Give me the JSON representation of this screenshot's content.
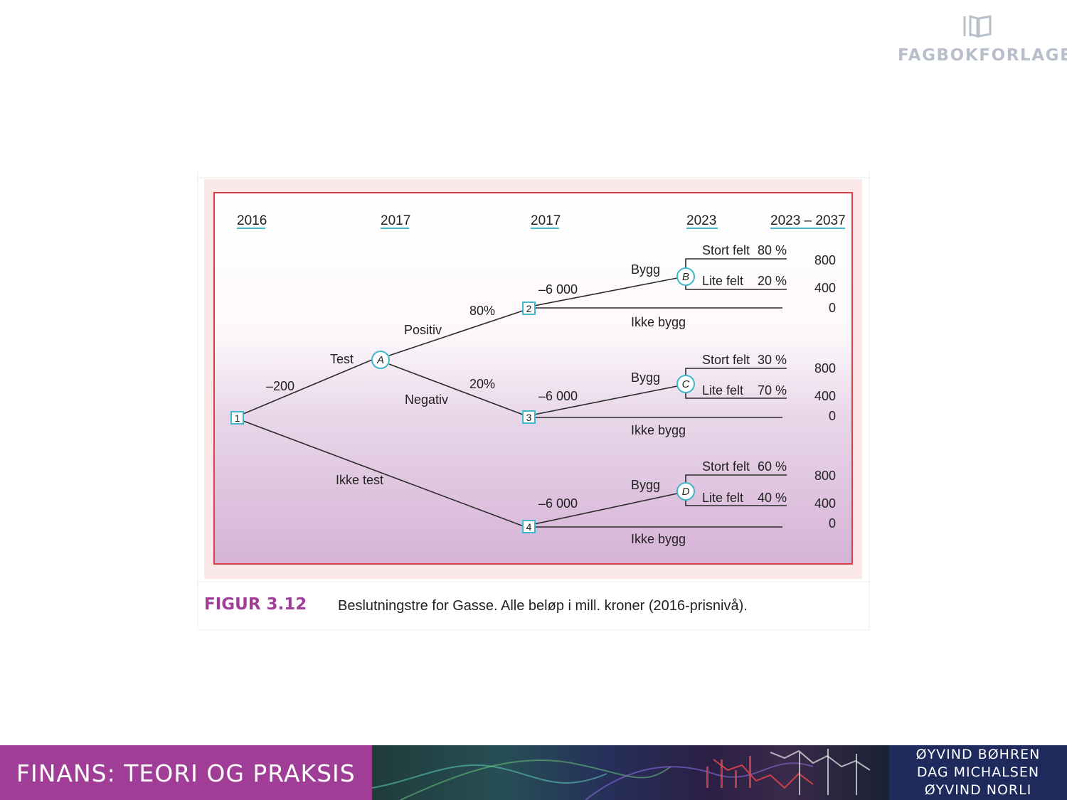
{
  "publisher": {
    "logo_icon": "book-icon",
    "name": "FAGBOKFORLAGET"
  },
  "figure": {
    "years": [
      "2016",
      "2017",
      "2017",
      "2023",
      "2023 – 2037"
    ],
    "decision_nodes": [
      "1",
      "2",
      "3",
      "4"
    ],
    "chance_nodes": [
      "A",
      "B",
      "C",
      "D"
    ],
    "branches": {
      "test_cost": "–200",
      "test": "Test",
      "no_test": "Ikke test",
      "positive": "Positiv",
      "positive_prob": "80%",
      "negative": "Negativ",
      "negative_prob": "20%"
    },
    "subtrees": [
      {
        "invest": "–6 000",
        "build": "Bygg",
        "no_build": "Ikke bygg",
        "large_field": "Stort felt",
        "large_prob": "80 %",
        "small_field": "Lite felt",
        "small_prob": "20 %",
        "payoffs": [
          "800",
          "400",
          "0"
        ]
      },
      {
        "invest": "–6 000",
        "build": "Bygg",
        "no_build": "Ikke bygg",
        "large_field": "Stort felt",
        "large_prob": "30 %",
        "small_field": "Lite felt",
        "small_prob": "70 %",
        "payoffs": [
          "800",
          "400",
          "0"
        ]
      },
      {
        "invest": "–6 000",
        "build": "Bygg",
        "no_build": "Ikke bygg",
        "large_field": "Stort felt",
        "large_prob": "60 %",
        "small_field": "Lite felt",
        "small_prob": "40 %",
        "payoffs": [
          "800",
          "400",
          "0"
        ]
      }
    ],
    "caption_label": "FIGUR 3.12",
    "caption_text": "Beslutningstre for Gasse. Alle beløp i mill. kroner (2016-prisnivå)."
  },
  "footer": {
    "title": "FINANS: TEORI OG PRAKSIS",
    "authors": [
      "ØYVIND BØHREN",
      "DAG MICHALSEN",
      "ØYVIND NORLI"
    ]
  },
  "colors": {
    "accent": "#a03e97",
    "frame": "#d9404a",
    "node_teal": "#3fb7c9",
    "footer_navy": "#1e2a5c"
  }
}
